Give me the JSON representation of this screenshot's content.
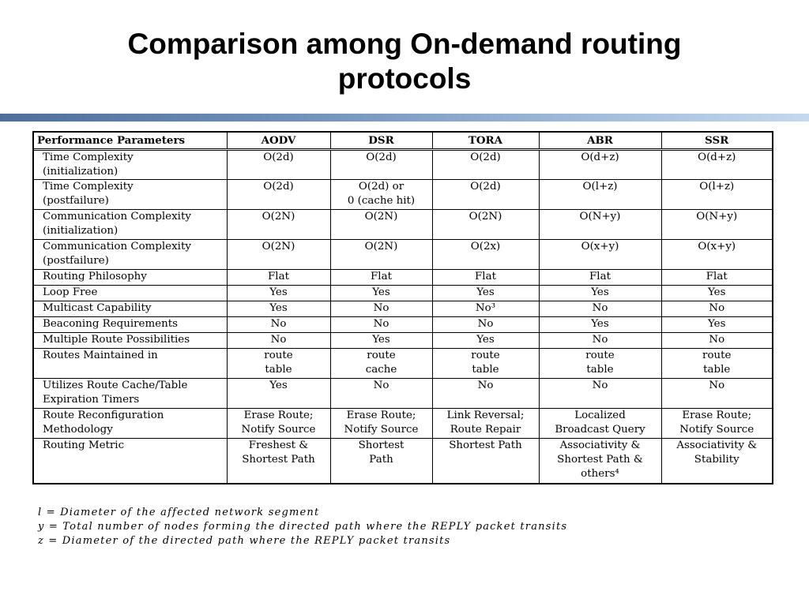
{
  "slide": {
    "title_line1": "Comparison among On-demand routing",
    "title_line2": "protocols"
  },
  "table": {
    "headers": [
      "Performance Parameters",
      "AODV",
      "DSR",
      "TORA",
      "ABR",
      "SSR"
    ],
    "rows": [
      {
        "param": [
          "Time Complexity",
          "(initialization)"
        ],
        "cells": [
          [
            "O(2d)"
          ],
          [
            "O(2d)"
          ],
          [
            "O(2d)"
          ],
          [
            "O(d+z)"
          ],
          [
            "O(d+z)"
          ]
        ]
      },
      {
        "param": [
          "Time Complexity",
          "(postfailure)"
        ],
        "cells": [
          [
            "O(2d)"
          ],
          [
            "O(2d) or",
            "0 (cache hit)"
          ],
          [
            "O(2d)"
          ],
          [
            "O(l+z)"
          ],
          [
            "O(l+z)"
          ]
        ]
      },
      {
        "param": [
          "Communication Complexity",
          "(initialization)"
        ],
        "cells": [
          [
            "O(2N)"
          ],
          [
            "O(2N)"
          ],
          [
            "O(2N)"
          ],
          [
            "O(N+y)"
          ],
          [
            "O(N+y)"
          ]
        ]
      },
      {
        "param": [
          "Communication Complexity",
          "(postfailure)"
        ],
        "cells": [
          [
            "O(2N)"
          ],
          [
            "O(2N)"
          ],
          [
            "O(2x)"
          ],
          [
            "O(x+y)"
          ],
          [
            "O(x+y)"
          ]
        ]
      },
      {
        "param": [
          "Routing Philosophy"
        ],
        "cells": [
          [
            "Flat"
          ],
          [
            "Flat"
          ],
          [
            "Flat"
          ],
          [
            "Flat"
          ],
          [
            "Flat"
          ]
        ]
      },
      {
        "param": [
          "Loop Free"
        ],
        "cells": [
          [
            "Yes"
          ],
          [
            "Yes"
          ],
          [
            "Yes"
          ],
          [
            "Yes"
          ],
          [
            "Yes"
          ]
        ]
      },
      {
        "param": [
          "Multicast Capability"
        ],
        "cells": [
          [
            "Yes"
          ],
          [
            "No"
          ],
          [
            "No³"
          ],
          [
            "No"
          ],
          [
            "No"
          ]
        ]
      },
      {
        "param": [
          "Beaconing Requirements"
        ],
        "cells": [
          [
            "No"
          ],
          [
            "No"
          ],
          [
            "No"
          ],
          [
            "Yes"
          ],
          [
            "Yes"
          ]
        ]
      },
      {
        "param": [
          "Multiple Route Possibilities"
        ],
        "cells": [
          [
            "No"
          ],
          [
            "Yes"
          ],
          [
            "Yes"
          ],
          [
            "No"
          ],
          [
            "No"
          ]
        ]
      },
      {
        "param": [
          "Routes Maintained in"
        ],
        "cells": [
          [
            "route",
            "table"
          ],
          [
            "route",
            "cache"
          ],
          [
            "route",
            "table"
          ],
          [
            "route",
            "table"
          ],
          [
            "route",
            "table"
          ]
        ]
      },
      {
        "param": [
          "Utilizes Route Cache/Table",
          "Expiration Timers"
        ],
        "cells": [
          [
            "Yes"
          ],
          [
            "No"
          ],
          [
            "No"
          ],
          [
            "No"
          ],
          [
            "No"
          ]
        ]
      },
      {
        "param": [
          "Route Reconfiguration",
          "Methodology"
        ],
        "cells": [
          [
            "Erase Route;",
            "Notify Source"
          ],
          [
            "Erase Route;",
            "Notify Source"
          ],
          [
            "Link Reversal;",
            "Route Repair"
          ],
          [
            "Localized",
            "Broadcast Query"
          ],
          [
            "Erase Route;",
            "Notify Source"
          ]
        ]
      },
      {
        "param": [
          "Routing Metric"
        ],
        "cells": [
          [
            "Freshest &",
            "Shortest Path"
          ],
          [
            "Shortest",
            "Path"
          ],
          [
            "Shortest Path"
          ],
          [
            "Associativity &",
            "Shortest Path &",
            "others⁴"
          ],
          [
            "Associativity &",
            "Stability"
          ]
        ]
      }
    ]
  },
  "footnotes": [
    "l = Diameter of the affected network segment",
    "y = Total number of nodes forming the directed path where the REPLY packet transits",
    "z = Diameter of the directed path where the REPLY packet transits"
  ],
  "colors": {
    "bar_start": "#4d6f99",
    "bar_end": "#c5d9ee"
  }
}
